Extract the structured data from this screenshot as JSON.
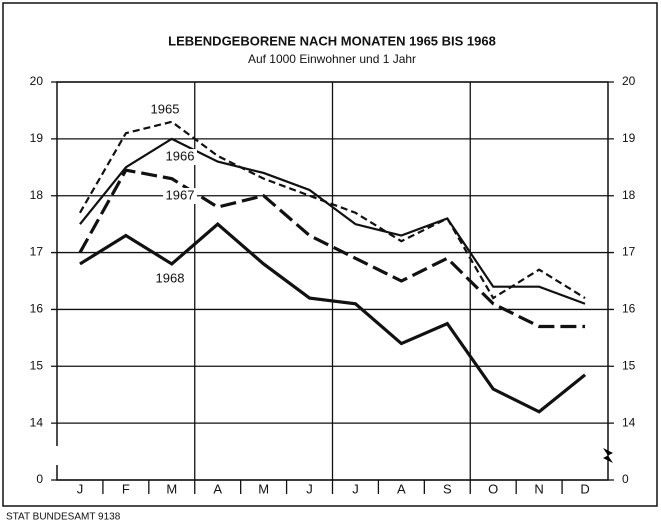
{
  "chart_data": {
    "type": "line",
    "title": "LEBENDGEBORENE NACH MONATEN 1965 BIS 1968",
    "subtitle": "Auf 1000 Einwohner und 1 Jahr",
    "source": "STAT BUNDESAMT 9138",
    "categories": [
      "J",
      "F",
      "M",
      "A",
      "M",
      "J",
      "J",
      "A",
      "S",
      "O",
      "N",
      "D"
    ],
    "series": [
      {
        "name": "1965",
        "color": "#111111",
        "dash": "short",
        "values": [
          17.7,
          19.1,
          19.3,
          18.7,
          18.3,
          18.0,
          17.7,
          17.2,
          17.6,
          16.2,
          16.7,
          16.2
        ]
      },
      {
        "name": "1966",
        "color": "#111111",
        "dash": "solid",
        "values": [
          17.5,
          18.5,
          19.0,
          18.6,
          18.4,
          18.1,
          17.5,
          17.3,
          17.6,
          16.4,
          16.4,
          16.1
        ]
      },
      {
        "name": "1967",
        "color": "#111111",
        "dash": "long",
        "values": [
          17.0,
          18.45,
          18.3,
          17.8,
          18.0,
          17.3,
          16.9,
          16.5,
          16.9,
          16.1,
          15.7,
          15.7
        ]
      },
      {
        "name": "1968",
        "color": "#111111",
        "dash": "solid",
        "values": [
          16.8,
          17.3,
          16.8,
          17.5,
          16.8,
          16.2,
          16.1,
          15.4,
          15.75,
          14.6,
          14.2,
          14.85
        ]
      }
    ],
    "ylim": [
      0,
      20
    ],
    "ybreak": [
      0,
      14
    ],
    "yticks": [
      0,
      14,
      15,
      16,
      17,
      18,
      19,
      20
    ],
    "grid": true
  }
}
